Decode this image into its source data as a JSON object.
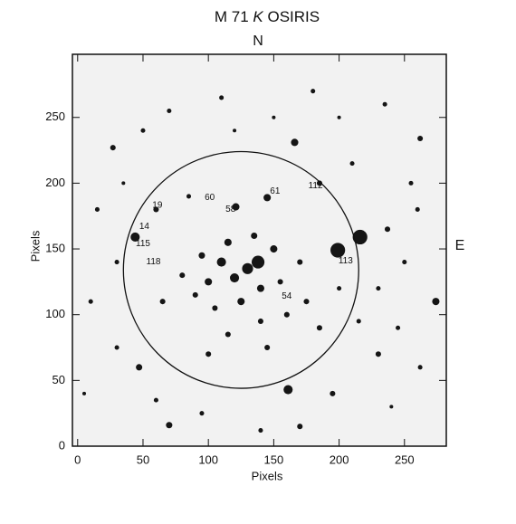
{
  "chart_data": {
    "type": "image",
    "title": [
      "M 71",
      "K",
      "OSIRIS"
    ],
    "top_label": "N",
    "right_label": "E",
    "xlabel": "Pixels",
    "ylabel": "Pixels",
    "xlim": [
      -4,
      282
    ],
    "ylim": [
      0,
      298
    ],
    "xticks": [
      0,
      50,
      100,
      150,
      200,
      250
    ],
    "yticks": [
      0,
      50,
      100,
      150,
      200,
      250
    ],
    "circle": {
      "x": 125,
      "y": 134,
      "r": 90
    },
    "star_labels": [
      {
        "text": "60",
        "x": 101,
        "y": 189
      },
      {
        "text": "61",
        "x": 151,
        "y": 194
      },
      {
        "text": "112",
        "x": 182,
        "y": 198
      },
      {
        "text": "19",
        "x": 61,
        "y": 183
      },
      {
        "text": "58",
        "x": 117,
        "y": 180
      },
      {
        "text": "14",
        "x": 51,
        "y": 167
      },
      {
        "text": "115",
        "x": 50,
        "y": 154
      },
      {
        "text": "118",
        "x": 58,
        "y": 140
      },
      {
        "text": "113",
        "x": 205,
        "y": 141
      },
      {
        "text": "54",
        "x": 160,
        "y": 114
      }
    ],
    "stars": [
      [
        216,
        159,
        8
      ],
      [
        199,
        149,
        8
      ],
      [
        44,
        159,
        5
      ],
      [
        161,
        43,
        5
      ],
      [
        166,
        231,
        4
      ],
      [
        138,
        140,
        7
      ],
      [
        274,
        110,
        4
      ],
      [
        47,
        60,
        3.5
      ],
      [
        70,
        16,
        3.5
      ],
      [
        262,
        234,
        3
      ],
      [
        27,
        227,
        3
      ],
      [
        145,
        189,
        4
      ],
      [
        121,
        182,
        4
      ],
      [
        237,
        165,
        3
      ],
      [
        130,
        135,
        6
      ],
      [
        120,
        128,
        5
      ],
      [
        110,
        140,
        5
      ],
      [
        100,
        125,
        4
      ],
      [
        140,
        120,
        4
      ],
      [
        150,
        150,
        4
      ],
      [
        115,
        155,
        4
      ],
      [
        95,
        145,
        3.5
      ],
      [
        125,
        110,
        4
      ],
      [
        105,
        105,
        3
      ],
      [
        155,
        125,
        3
      ],
      [
        160,
        100,
        3
      ],
      [
        170,
        140,
        3
      ],
      [
        135,
        160,
        3.5
      ],
      [
        90,
        115,
        3
      ],
      [
        80,
        130,
        3
      ],
      [
        175,
        110,
        3
      ],
      [
        185,
        90,
        3
      ],
      [
        115,
        85,
        3
      ],
      [
        140,
        95,
        3
      ],
      [
        185,
        200,
        3
      ],
      [
        195,
        40,
        3
      ],
      [
        170,
        15,
        3
      ],
      [
        230,
        70,
        3
      ],
      [
        255,
        200,
        2.5
      ],
      [
        235,
        260,
        2.5
      ],
      [
        50,
        240,
        2.5
      ],
      [
        15,
        180,
        2.5
      ],
      [
        10,
        110,
        2.5
      ],
      [
        30,
        75,
        2.5
      ],
      [
        70,
        255,
        2.5
      ],
      [
        110,
        265,
        2.5
      ],
      [
        180,
        270,
        2.5
      ],
      [
        150,
        250,
        2
      ],
      [
        250,
        140,
        2.5
      ],
      [
        262,
        60,
        2.5
      ],
      [
        65,
        110,
        3
      ],
      [
        60,
        180,
        3
      ],
      [
        200,
        120,
        2.5
      ],
      [
        95,
        25,
        2.5
      ],
      [
        140,
        12,
        2.5
      ],
      [
        260,
        180,
        2.5
      ],
      [
        210,
        215,
        2.5
      ],
      [
        30,
        140,
        2.5
      ],
      [
        145,
        75,
        3
      ],
      [
        100,
        70,
        3
      ],
      [
        230,
        120,
        2.5
      ],
      [
        215,
        95,
        2.5
      ],
      [
        35,
        200,
        2
      ],
      [
        85,
        190,
        2.5
      ],
      [
        120,
        240,
        2
      ],
      [
        200,
        250,
        2
      ],
      [
        5,
        40,
        2
      ],
      [
        240,
        30,
        2
      ],
      [
        60,
        35,
        2.5
      ],
      [
        245,
        90,
        2.5
      ]
    ]
  }
}
